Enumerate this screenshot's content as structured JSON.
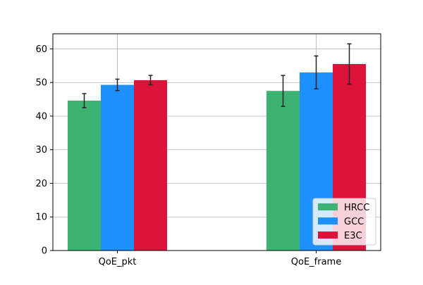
{
  "chart_data": {
    "type": "bar",
    "title": "",
    "xlabel": "",
    "ylabel": "",
    "categories": [
      "QoE_pkt",
      "QoE_frame"
    ],
    "series": [
      {
        "name": "HRCC",
        "color": "#3cb371",
        "values": [
          44.6,
          47.5
        ],
        "errors": [
          2.1,
          4.6
        ]
      },
      {
        "name": "GCC",
        "color": "#1e90ff",
        "values": [
          49.3,
          53.0
        ],
        "errors": [
          1.7,
          4.9
        ]
      },
      {
        "name": "E3C",
        "color": "#dc143c",
        "values": [
          50.7,
          55.5
        ],
        "errors": [
          1.4,
          6.0
        ]
      }
    ],
    "ylim": [
      0,
      64.5
    ],
    "yticks": [
      0,
      10,
      20,
      30,
      40,
      50,
      60
    ],
    "grid": true,
    "legend_position": "lower right"
  }
}
